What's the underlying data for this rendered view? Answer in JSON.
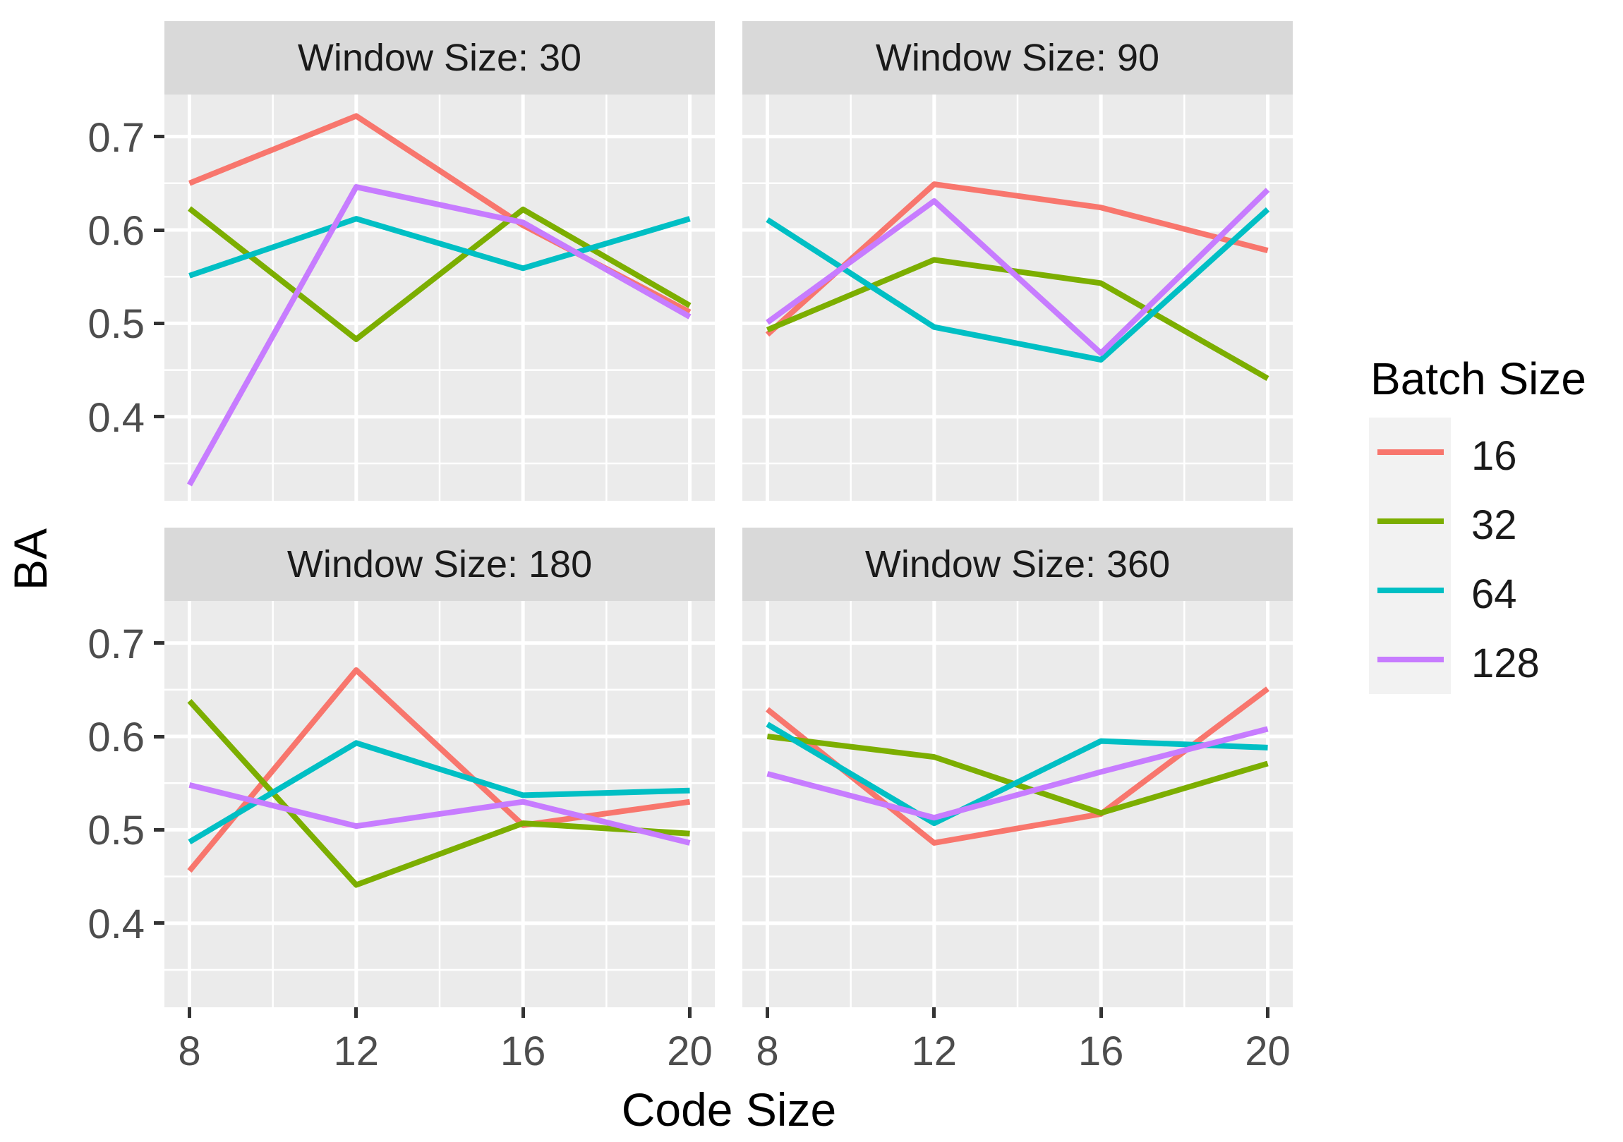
{
  "figure": {
    "y_axis_title": "BA",
    "x_axis_title": "Code Size"
  },
  "colors": {
    "panel_background": "#EBEBEB",
    "strip_background": "#D9D9D9",
    "gridline": "#FFFFFF",
    "tick_text": "#4D4D4D",
    "axis_text": "#000000",
    "legend_key_background": "#F2F2F2"
  },
  "chart_data": {
    "type": "line",
    "facet_variable": "Window Size",
    "xlabel": "Code Size",
    "ylabel": "BA",
    "x": [
      8,
      12,
      16,
      20
    ],
    "x_tick_labels": [
      "8",
      "12",
      "16",
      "20"
    ],
    "y_ticks": [
      0.7,
      0.6,
      0.5,
      0.4
    ],
    "y_tick_labels": [
      "0.7",
      "0.6",
      "0.5",
      "0.4"
    ],
    "x_minor": [
      10,
      14,
      18
    ],
    "y_minor": [
      0.35,
      0.45,
      0.55,
      0.65
    ],
    "xlim": [
      7.4,
      20.6
    ],
    "ylim": [
      0.31,
      0.745
    ],
    "grid": true,
    "legend": {
      "title": "Batch Size",
      "position": "right",
      "entries": [
        {
          "label": "16",
          "color": "#F8766D"
        },
        {
          "label": "32",
          "color": "#7CAE00"
        },
        {
          "label": "64",
          "color": "#00BFC4"
        },
        {
          "label": "128",
          "color": "#C77CFF"
        }
      ]
    },
    "panels": [
      {
        "title": "Window Size: 30",
        "series": [
          {
            "name": "16",
            "values": [
              0.65,
              0.722,
              0.605,
              0.512
            ]
          },
          {
            "name": "32",
            "values": [
              0.623,
              0.483,
              0.622,
              0.519
            ]
          },
          {
            "name": "64",
            "values": [
              0.551,
              0.612,
              0.559,
              0.612
            ]
          },
          {
            "name": "128",
            "values": [
              0.327,
              0.646,
              0.608,
              0.507
            ]
          }
        ]
      },
      {
        "title": "Window Size: 90",
        "series": [
          {
            "name": "16",
            "values": [
              0.488,
              0.649,
              0.624,
              0.578
            ]
          },
          {
            "name": "32",
            "values": [
              0.493,
              0.568,
              0.543,
              0.441
            ]
          },
          {
            "name": "64",
            "values": [
              0.611,
              0.496,
              0.461,
              0.622
            ]
          },
          {
            "name": "128",
            "values": [
              0.501,
              0.631,
              0.468,
              0.643
            ]
          }
        ]
      },
      {
        "title": "Window Size: 180",
        "series": [
          {
            "name": "16",
            "values": [
              0.456,
              0.671,
              0.505,
              0.53
            ]
          },
          {
            "name": "32",
            "values": [
              0.638,
              0.441,
              0.507,
              0.496
            ]
          },
          {
            "name": "64",
            "values": [
              0.487,
              0.593,
              0.537,
              0.542
            ]
          },
          {
            "name": "128",
            "values": [
              0.548,
              0.504,
              0.53,
              0.486
            ]
          }
        ]
      },
      {
        "title": "Window Size: 360",
        "series": [
          {
            "name": "16",
            "values": [
              0.629,
              0.486,
              0.517,
              0.651
            ]
          },
          {
            "name": "32",
            "values": [
              0.6,
              0.578,
              0.518,
              0.571
            ]
          },
          {
            "name": "64",
            "values": [
              0.613,
              0.507,
              0.595,
              0.588
            ]
          },
          {
            "name": "128",
            "values": [
              0.56,
              0.513,
              0.562,
              0.608
            ]
          }
        ]
      }
    ]
  }
}
